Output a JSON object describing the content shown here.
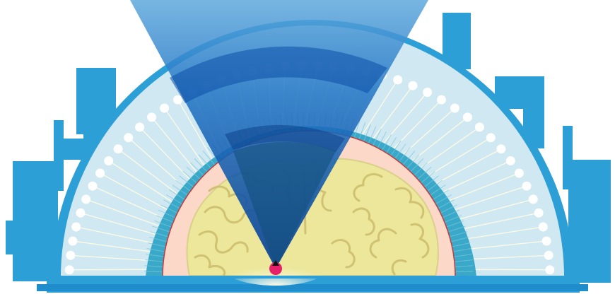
{
  "illustration": {
    "subject": "brain-scanner-illustration",
    "ring_spoke_count": 46,
    "dot_count": 46,
    "colors": {
      "frame_blue": "#2c9fd6",
      "frame_dark": "#1a6fb8",
      "dome_fill": "#cfe8f1",
      "rim_teal": "#3aa9c9",
      "skull_pink": "#fbd8c8",
      "brain_yellow": "#ece79a",
      "brain_outline": "#c9c27a",
      "beam_blue": "#0b5db5",
      "source_dot": "#e6206a",
      "spoke": "#fffbe6",
      "dot": "#ffffff"
    }
  }
}
